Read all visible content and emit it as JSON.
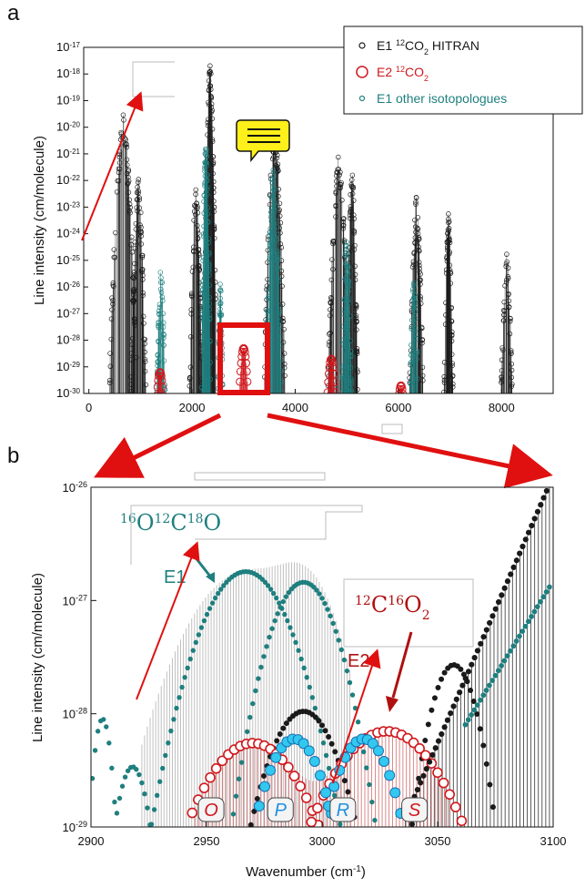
{
  "panels": {
    "a": "a",
    "b": "b"
  },
  "colors": {
    "e1": "#1a1a1a",
    "e2": "#d0181d",
    "iso": "#1f7f7f",
    "branch_p_r": "#1f8fe0",
    "arrow": "#e01010"
  },
  "legend": [
    {
      "marker": "small-black-circle",
      "text": "E1 ",
      "sup": "12",
      "text2": "CO",
      "sub": "2",
      "text3": " HITRAN",
      "color": "#1a1a1a"
    },
    {
      "marker": "large-red-circle",
      "text": "E2 ",
      "sup": "12",
      "text2": "CO",
      "sub": "2",
      "text3": "",
      "color": "#d0181d"
    },
    {
      "marker": "small-teal-circle",
      "text": "E1 other isotopologues",
      "sup": "",
      "text2": "",
      "sub": "",
      "text3": "",
      "color": "#1f7f7f"
    }
  ],
  "chart_data": [
    {
      "panel": "a",
      "type": "scatter",
      "ylabel": "Line intensity (cm/molecule)",
      "xlabel": "",
      "x_ticks": [
        "0",
        "2000",
        "4000",
        "6000",
        "8000"
      ],
      "y_scale": "log",
      "y_tick_exponents": [
        "-30",
        "-29",
        "-28",
        "-27",
        "-26",
        "-25",
        "-24",
        "-23",
        "-22",
        "-21",
        "-20",
        "-19",
        "-18",
        "-17"
      ],
      "xlim": [
        -100,
        9000
      ],
      "ylim_log10": [
        -30,
        -17
      ],
      "series": [
        {
          "key": "e1",
          "bands": [
            {
              "x": 667,
              "logS": -19.5,
              "w": 260
            },
            {
              "x": 960,
              "logS": -21.8,
              "w": 160
            },
            {
              "x": 2076,
              "logS": -22.2,
              "w": 140
            },
            {
              "x": 2349,
              "logS": -17.4,
              "w": 110
            },
            {
              "x": 3600,
              "logS": -19.8,
              "w": 200
            },
            {
              "x": 4850,
              "logS": -21.0,
              "w": 230
            },
            {
              "x": 5100,
              "logS": -21.5,
              "w": 120
            },
            {
              "x": 6350,
              "logS": -22.6,
              "w": 160
            },
            {
              "x": 6970,
              "logS": -23.2,
              "w": 110
            },
            {
              "x": 8100,
              "logS": -24.7,
              "w": 160
            }
          ]
        },
        {
          "key": "iso",
          "bands": [
            {
              "x": 1400,
              "logS": -25.0,
              "w": 120
            },
            {
              "x": 2270,
              "logS": -20.2,
              "w": 90
            },
            {
              "x": 2550,
              "logS": -25.8,
              "w": 80
            },
            {
              "x": 3580,
              "logS": -21.5,
              "w": 170
            },
            {
              "x": 5000,
              "logS": -24.2,
              "w": 130
            },
            {
              "x": 6300,
              "logS": -25.5,
              "w": 120
            }
          ]
        },
        {
          "key": "e2",
          "bands": [
            {
              "x": 1380,
              "logS": -29.2
            },
            {
              "x": 3000,
              "logS": -28.3
            },
            {
              "x": 4700,
              "logS": -28.7
            },
            {
              "x": 6050,
              "logS": -29.7
            }
          ]
        }
      ],
      "zoom_window": {
        "x_from": 2900,
        "x_to": 3100
      }
    },
    {
      "panel": "b",
      "type": "scatter",
      "xlabel": "Wavenumber (cm",
      "xlabel_sup": "-1",
      "xlabel_end": ")",
      "ylabel": "Line intensity (cm/molecule)",
      "x_ticks": [
        "2900",
        "2950",
        "3000",
        "3050",
        "3100"
      ],
      "y_scale": "log",
      "y_tick_exponents": [
        "-29",
        "-28",
        "-27",
        "-26"
      ],
      "xlim": [
        2900,
        3100
      ],
      "ylim_log10": [
        -29,
        -26
      ],
      "branches": [
        "O",
        "P",
        "R",
        "S"
      ],
      "annotations": {
        "iso_formula": [
          "16",
          "O",
          "12",
          "C",
          "18",
          "O"
        ],
        "main_formula": [
          "12",
          "C",
          "16",
          "O",
          "2"
        ],
        "e1_label": "E1",
        "e2_label": "E2"
      },
      "curves": [
        {
          "key": "iso",
          "center": 2967,
          "peak": 1.8e-27,
          "width": 18
        },
        {
          "key": "iso",
          "center": 2992,
          "peak": 1.45e-27,
          "width": 14
        },
        {
          "key": "iso",
          "center": 2905,
          "peak": 9e-29,
          "width": 4
        },
        {
          "key": "iso",
          "center": 2918,
          "peak": 3.4e-29,
          "width": 7
        },
        {
          "key": "e1",
          "center": 3057,
          "peak": 2.7e-28,
          "width": 10
        },
        {
          "key": "e1",
          "center": 2992,
          "peak": 1.05e-28,
          "width": 15
        },
        {
          "key": "e2",
          "center": 2970,
          "peak": 5.5e-29,
          "width": 22
        },
        {
          "key": "e2",
          "center": 3028,
          "peak": 7e-29,
          "width": 24
        },
        {
          "key": "branch_p_r",
          "center": 2988,
          "peak": 6e-29,
          "width": 13
        },
        {
          "key": "branch_p_r",
          "center": 3018,
          "peak": 6e-29,
          "width": 13
        }
      ]
    }
  ]
}
